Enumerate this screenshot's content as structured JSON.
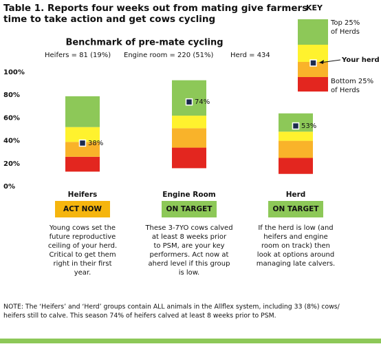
{
  "header": {
    "title_lines": [
      "Table 1. Reports four weeks out from mating give farmers",
      "time to take action and get cows cycling"
    ]
  },
  "key": {
    "title": "KEY",
    "top": [
      "Top 25%",
      "of Herds"
    ],
    "your_herd": "Your herd",
    "bottom": [
      "Bottom 25%",
      "of Herds"
    ]
  },
  "chart_data": {
    "type": "floating-stacked-bar",
    "title": "Benchmark of pre-mate cycling",
    "subtitles": [
      "Heifers = 81 (19%)",
      "Engine room = 220 (51%)",
      "Herd = 434"
    ],
    "categories": [
      "Heifers",
      "Engine Room",
      "Herd"
    ],
    "start": [
      13,
      16,
      11
    ],
    "series": [
      {
        "color": "#e3261f",
        "values": [
          13,
          18,
          14
        ]
      },
      {
        "color": "#f9b32a",
        "values": [
          13,
          17,
          15
        ]
      },
      {
        "color": "#fff22e",
        "values": [
          13,
          11,
          8
        ]
      },
      {
        "color": "#8dc858",
        "values": [
          27,
          31,
          16
        ]
      }
    ],
    "marker": {
      "color": "#1b2a4e",
      "values": [
        38,
        74,
        53
      ],
      "value_labels": [
        "38%",
        "74%",
        "53%"
      ]
    },
    "ylim": [
      0,
      100
    ],
    "yticks": [
      {
        "value": 0,
        "label": "0%"
      },
      {
        "value": 20,
        "label": "20%"
      },
      {
        "value": 40,
        "label": "40%"
      },
      {
        "value": 60,
        "label": "60%"
      },
      {
        "value": 80,
        "label": "80%"
      },
      {
        "value": 100,
        "label": "100%"
      }
    ]
  },
  "status": [
    {
      "label": "ACT NOW",
      "color": "#f5b50e"
    },
    {
      "label": "ON TARGET",
      "color": "#8dc858"
    },
    {
      "label": "ON TARGET",
      "color": "#8dc858"
    }
  ],
  "descriptions": [
    [
      "Young cows set the",
      "future reproductive",
      "ceiling of your herd.",
      "Critical to get them",
      "right in their first",
      "year."
    ],
    [
      "These 3-7YO cows calved",
      "at least 8 weeks prior",
      "to PSM, are your key",
      "performers. Act now at",
      "aherd level if this group",
      "is low."
    ],
    [
      "If the herd is low (and",
      "heifers and engine",
      "room on track) then",
      "look at options around",
      "managing late calvers."
    ]
  ],
  "note": [
    "NOTE: The ‘Heifers’ and ‘Herd’ groups contain ALL animals in the Allflex system, including 33 (8%) cows/",
    "heifers still to calve. This season 74% of heifers calved at least 8 weeks prior to PSM."
  ]
}
